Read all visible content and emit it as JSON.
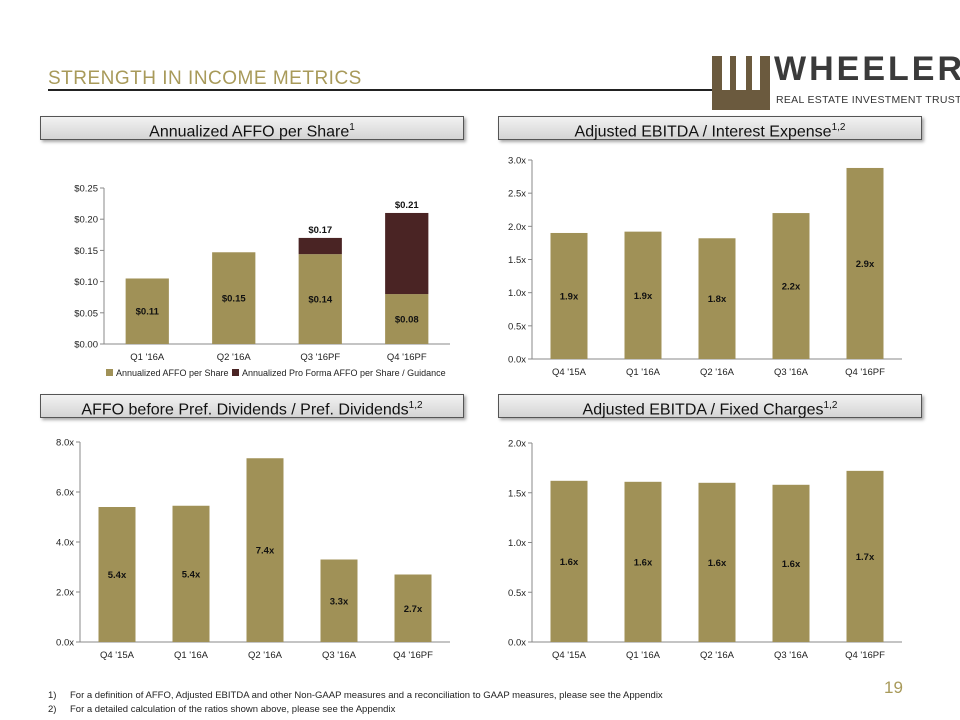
{
  "page": {
    "title": "STRENGTH IN INCOME METRICS",
    "page_number": "19",
    "colors": {
      "gold": "#a09157",
      "dark": "#4a2424",
      "title": "#a89a5a"
    }
  },
  "logo": {
    "name": "WHEELER",
    "tagline": "REAL ESTATE INVESTMENT TRUST"
  },
  "panels": [
    {
      "label": "Annualized AFFO per Share",
      "sup": "1"
    },
    {
      "label": "Adjusted EBITDA / Interest Expense",
      "sup": "1,2"
    },
    {
      "label": "AFFO before Pref. Dividends / Pref. Dividends",
      "sup": "1,2"
    },
    {
      "label": "Adjusted EBITDA / Fixed Charges",
      "sup": "1,2"
    }
  ],
  "chart_data": [
    {
      "type": "bar",
      "stacked": true,
      "categories": [
        "Q1 '16A",
        "Q2 '16A",
        "Q3 '16PF",
        "Q4 '16PF"
      ],
      "series": [
        {
          "name": "Annualized AFFO per Share",
          "values": [
            0.105,
            0.147,
            0.144,
            0.08
          ],
          "labels": [
            "$0.11",
            "$0.15",
            "$0.14",
            "$0.08"
          ]
        },
        {
          "name": "Annualized Pro Forma AFFO per Share / Guidance",
          "values": [
            0,
            0,
            0.026,
            0.13
          ]
        }
      ],
      "totals": [
        "",
        "",
        "$0.17",
        "$0.21"
      ],
      "ylim": [
        0,
        0.25
      ],
      "yticks": [
        "$0.00",
        "$0.05",
        "$0.10",
        "$0.15",
        "$0.20",
        "$0.25"
      ],
      "legend": "bottom"
    },
    {
      "type": "bar",
      "categories": [
        "Q4 '15A",
        "Q1 '16A",
        "Q2 '16A",
        "Q3 '16A",
        "Q4 '16PF"
      ],
      "values": [
        1.9,
        1.92,
        1.82,
        2.2,
        2.88
      ],
      "labels": [
        "1.9x",
        "1.9x",
        "1.8x",
        "2.2x",
        "2.9x"
      ],
      "ylim": [
        0,
        3.0
      ],
      "yticks": [
        "0.0x",
        "0.5x",
        "1.0x",
        "1.5x",
        "2.0x",
        "2.5x",
        "3.0x"
      ]
    },
    {
      "type": "bar",
      "categories": [
        "Q4 '15A",
        "Q1 '16A",
        "Q2 '16A",
        "Q3 '16A",
        "Q4 '16PF"
      ],
      "values": [
        5.4,
        5.45,
        7.35,
        3.3,
        2.7
      ],
      "labels": [
        "5.4x",
        "5.4x",
        "7.4x",
        "3.3x",
        "2.7x"
      ],
      "ylim": [
        0,
        8.0
      ],
      "yticks": [
        "0.0x",
        "2.0x",
        "4.0x",
        "6.0x",
        "8.0x"
      ]
    },
    {
      "type": "bar",
      "categories": [
        "Q4 '15A",
        "Q1 '16A",
        "Q2 '16A",
        "Q3 '16A",
        "Q4 '16PF"
      ],
      "values": [
        1.62,
        1.61,
        1.6,
        1.58,
        1.72
      ],
      "labels": [
        "1.6x",
        "1.6x",
        "1.6x",
        "1.6x",
        "1.7x"
      ],
      "ylim": [
        0,
        2.0
      ],
      "yticks": [
        "0.0x",
        "0.5x",
        "1.0x",
        "1.5x",
        "2.0x"
      ]
    }
  ],
  "footnotes": [
    {
      "n": "1)",
      "text": "For a definition of AFFO, Adjusted EBITDA and other Non-GAAP measures and a reconciliation to GAAP measures, please see the Appendix"
    },
    {
      "n": "2)",
      "text": "For a detailed calculation of the ratios shown above, please see the Appendix"
    }
  ]
}
